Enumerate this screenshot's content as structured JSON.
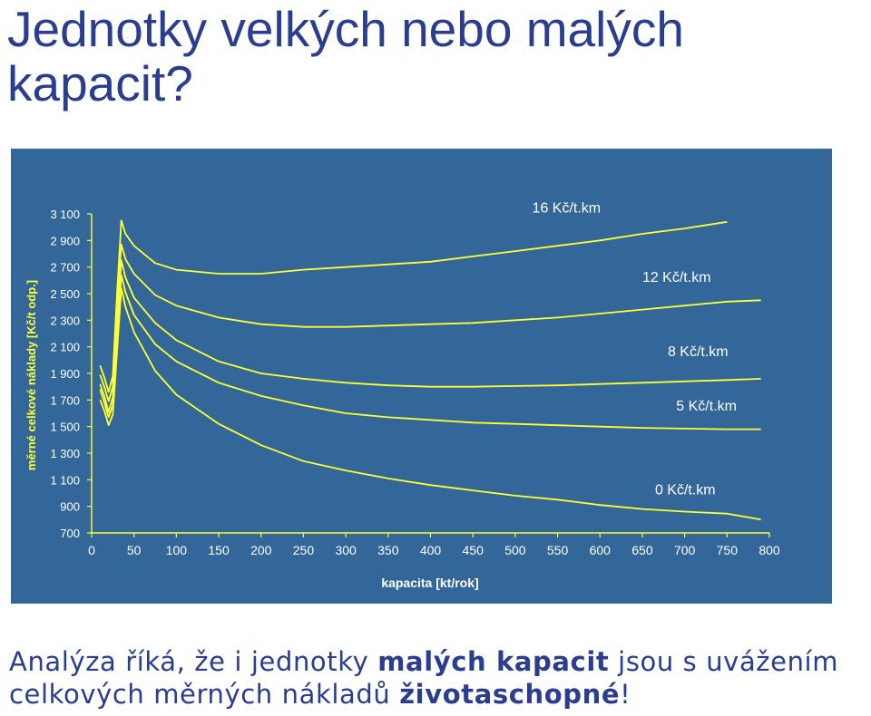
{
  "slide": {
    "title": "Jednotky velkých nebo malých kapacit?",
    "caption": {
      "p1": "Analýza říká, že i jednotky ",
      "b1": "malých kapacit",
      "p2": " jsou s uvážením celkových měrných nákladů ",
      "b2": "životaschopné",
      "p3": "!"
    }
  },
  "colors": {
    "background": "#336699",
    "line": "#ffff33",
    "title": "#2a3d8f"
  },
  "chart_data": {
    "type": "line",
    "xlabel": "kapacita [kt/rok]",
    "ylabel": "měrné celkové náklady [Kč/t odp.]",
    "xlim": [
      0,
      800
    ],
    "ylim": [
      700,
      3100
    ],
    "xticks": [
      "0",
      "50",
      "100",
      "150",
      "200",
      "250",
      "300",
      "350",
      "400",
      "450",
      "500",
      "550",
      "600",
      "650",
      "700",
      "750",
      "800"
    ],
    "yticks": [
      "3 100",
      "2 900",
      "2 700",
      "2 500",
      "2 300",
      "2 100",
      "1 900",
      "1 700",
      "1 500",
      "1 300",
      "1 100",
      "900",
      "700"
    ],
    "grid": false,
    "series": [
      {
        "name": "16 Kč/t.km",
        "x": [
          10,
          15,
          20,
          25,
          30,
          35,
          40,
          50,
          75,
          100,
          150,
          200,
          250,
          300,
          350,
          400,
          450,
          500,
          550,
          600,
          650,
          700,
          750
        ],
        "y": [
          1960,
          1870,
          1760,
          1880,
          2500,
          3050,
          2950,
          2860,
          2730,
          2680,
          2650,
          2650,
          2680,
          2700,
          2720,
          2740,
          2780,
          2820,
          2860,
          2900,
          2950,
          2990,
          3040
        ]
      },
      {
        "name": "12 Kč/t.km",
        "x": [
          10,
          15,
          20,
          25,
          30,
          35,
          40,
          50,
          75,
          100,
          150,
          200,
          250,
          300,
          350,
          400,
          450,
          500,
          550,
          600,
          650,
          700,
          750,
          790
        ],
        "y": [
          1890,
          1800,
          1690,
          1800,
          2380,
          2870,
          2760,
          2650,
          2490,
          2410,
          2320,
          2270,
          2250,
          2250,
          2260,
          2270,
          2280,
          2300,
          2320,
          2350,
          2380,
          2410,
          2440,
          2450
        ]
      },
      {
        "name": "8 Kč/t.km",
        "x": [
          10,
          15,
          20,
          25,
          30,
          35,
          40,
          50,
          75,
          100,
          150,
          200,
          250,
          300,
          350,
          400,
          450,
          500,
          550,
          600,
          650,
          700,
          750,
          790
        ],
        "y": [
          1820,
          1730,
          1610,
          1720,
          2260,
          2750,
          2620,
          2470,
          2280,
          2150,
          1990,
          1900,
          1860,
          1830,
          1810,
          1800,
          1800,
          1805,
          1810,
          1820,
          1830,
          1840,
          1850,
          1860
        ]
      },
      {
        "name": "5 Kč/t.km",
        "x": [
          10,
          15,
          20,
          25,
          30,
          35,
          40,
          50,
          75,
          100,
          150,
          200,
          250,
          300,
          350,
          400,
          450,
          500,
          550,
          600,
          650,
          700,
          750,
          790
        ],
        "y": [
          1780,
          1680,
          1570,
          1660,
          2160,
          2640,
          2510,
          2340,
          2120,
          1990,
          1830,
          1730,
          1660,
          1600,
          1570,
          1550,
          1530,
          1520,
          1510,
          1500,
          1490,
          1485,
          1480,
          1480
        ]
      },
      {
        "name": "0 Kč/t.km",
        "x": [
          10,
          15,
          20,
          25,
          30,
          35,
          40,
          50,
          75,
          100,
          150,
          200,
          250,
          300,
          350,
          400,
          450,
          500,
          550,
          600,
          650,
          700,
          750,
          790
        ],
        "y": [
          1700,
          1620,
          1510,
          1590,
          2060,
          2540,
          2400,
          2210,
          1920,
          1740,
          1520,
          1360,
          1240,
          1170,
          1110,
          1060,
          1020,
          980,
          950,
          910,
          880,
          860,
          845,
          800
        ]
      }
    ],
    "series_labels": [
      {
        "text": "16 Kč/t.km",
        "x": 520,
        "y": 3110
      },
      {
        "text": "12 Kč/t.km",
        "x": 650,
        "y": 2590
      },
      {
        "text": "8 Kč/t.km",
        "x": 680,
        "y": 2030
      },
      {
        "text": "5 Kč/t.km",
        "x": 690,
        "y": 1620
      },
      {
        "text": "0 Kč/t.km",
        "x": 665,
        "y": 990
      }
    ]
  }
}
